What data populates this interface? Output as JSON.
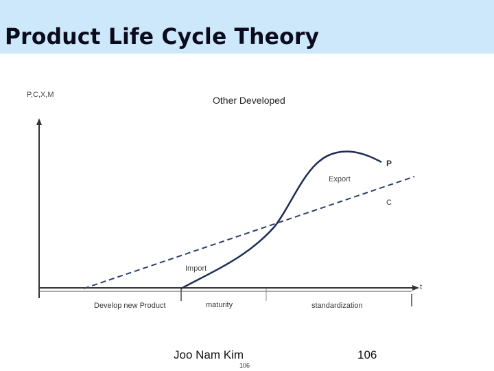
{
  "slide": {
    "title": "Product Life Cycle Theory",
    "author": "Joo Nam Kim",
    "page_number": "106",
    "page_number_small": "106"
  },
  "chart_data": {
    "type": "line",
    "title": "Other Developed",
    "ylabel": "P,C,X,M",
    "xlabel": "t",
    "series": [
      {
        "name": "P",
        "style": "solid"
      },
      {
        "name": "C",
        "style": "dashed"
      }
    ],
    "annotations": [
      "Export",
      "Import"
    ],
    "stages": [
      "Develop new Product",
      "maturity",
      "standardization"
    ]
  }
}
